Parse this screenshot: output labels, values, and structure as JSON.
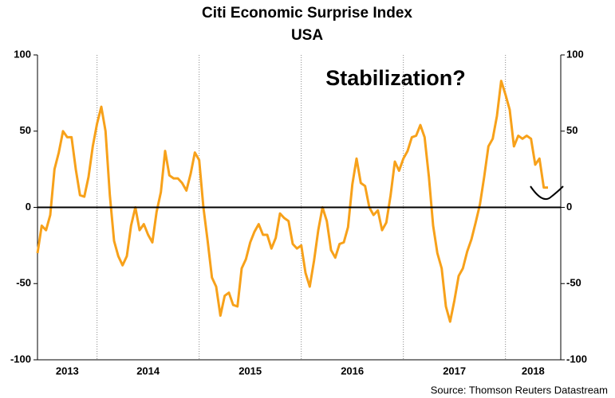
{
  "chart_data": {
    "type": "line",
    "title": "Citi Economic Surprise Index",
    "subtitle": "USA",
    "annotation": "Stabilization?",
    "source": "Source: Thomson Reuters Datastream",
    "categories": [
      "2013",
      null,
      null,
      null,
      null,
      null,
      null,
      null,
      null,
      null,
      null,
      null,
      null,
      null,
      "2014",
      null,
      null,
      null,
      null,
      null,
      null,
      null,
      null,
      null,
      null,
      null,
      null,
      null,
      null,
      null,
      null,
      null,
      null,
      null,
      null,
      null,
      null,
      null,
      "2015",
      null,
      null,
      null,
      null,
      null,
      null,
      null,
      null,
      null,
      null,
      null,
      null,
      null,
      null,
      null,
      null,
      null,
      null,
      null,
      null,
      null,
      null,
      null,
      "2016",
      null,
      null,
      null,
      null,
      null,
      null,
      null,
      null,
      null,
      null,
      null,
      null,
      null,
      null,
      null,
      null,
      null,
      null,
      null,
      null,
      null,
      null,
      null,
      "2017",
      null,
      null,
      null,
      null,
      null,
      null,
      null,
      null,
      null,
      null,
      null,
      null,
      null,
      null,
      null,
      null,
      null,
      null,
      null,
      null,
      null,
      null,
      null,
      "2018",
      null,
      null,
      null,
      null,
      null,
      null,
      null,
      null,
      null,
      null,
      null,
      null,
      null
    ],
    "series": [
      {
        "name": "Citi Economic Surprise Index USA",
        "color": "#f7a11a",
        "values": [
          -30,
          -12,
          -15,
          -5,
          25,
          36,
          50,
          46,
          46,
          25,
          8,
          7,
          20,
          40,
          55,
          66,
          50,
          8,
          -22,
          -32,
          -38,
          -32,
          -12,
          0,
          -15,
          -11,
          -18,
          -23,
          -3,
          10,
          37,
          21,
          19,
          19,
          16,
          11,
          22,
          36,
          31,
          0,
          -22,
          -46,
          -52,
          -71,
          -58,
          -56,
          -64,
          -65,
          -40,
          -34,
          -23,
          -16,
          -11,
          -18,
          -18,
          -27,
          -20,
          -4,
          -7,
          -9,
          -24,
          -27,
          -25,
          -43,
          -52,
          -35,
          -15,
          0,
          -9,
          -28,
          -33,
          -24,
          -23,
          -13,
          15,
          32,
          16,
          14,
          0,
          -5,
          -2,
          -15,
          -10,
          8,
          30,
          24,
          32,
          37,
          46,
          47,
          54,
          46,
          20,
          -12,
          -30,
          -40,
          -65,
          -75,
          -61,
          -45,
          -40,
          -29,
          -21,
          -10,
          2,
          20,
          40,
          45,
          60,
          83,
          74,
          64,
          40,
          47,
          45,
          47,
          45,
          28,
          32,
          13,
          13,
          null,
          null,
          null
        ]
      }
    ],
    "ylim": [
      -100,
      100
    ],
    "yticks": [
      -100,
      -50,
      0,
      50,
      100
    ],
    "y2lim": [
      -100,
      100
    ],
    "y2ticks": [
      -100,
      -50,
      0,
      50,
      100
    ]
  }
}
